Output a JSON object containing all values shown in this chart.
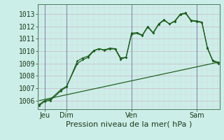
{
  "bg_color": "#cceee8",
  "grid_color_major": "#c8b8c8",
  "grid_color_minor": "#ddd0dd",
  "line_color": "#1a5c1a",
  "title": "Pression niveau de la mer( hPa )",
  "ylabel_values": [
    1006,
    1007,
    1008,
    1009,
    1010,
    1011,
    1012,
    1013
  ],
  "ylim": [
    1005.3,
    1013.8
  ],
  "xlim": [
    -0.5,
    66.5
  ],
  "xlabel_ticks": [
    2,
    10,
    34,
    58
  ],
  "xlabel_labels": [
    "Jeu",
    "Dim",
    "Ven",
    "Sam"
  ],
  "vline_x": [
    2,
    10,
    34,
    58
  ],
  "vline_color": "#8888aa",
  "series1_x": [
    0,
    2,
    4,
    8,
    10,
    14,
    16,
    18,
    20,
    22,
    24,
    26,
    28,
    30,
    32,
    34,
    36,
    38,
    40,
    42,
    44,
    46,
    48,
    50,
    52,
    54,
    56,
    58,
    60,
    62,
    64,
    66
  ],
  "series1_y": [
    1005.6,
    1005.95,
    1006.0,
    1006.8,
    1007.1,
    1009.2,
    1009.45,
    1009.6,
    1010.05,
    1010.2,
    1010.1,
    1010.25,
    1010.2,
    1009.45,
    1009.5,
    1011.45,
    1011.5,
    1011.3,
    1012.0,
    1011.5,
    1012.2,
    1012.55,
    1012.2,
    1012.45,
    1013.0,
    1013.1,
    1012.5,
    1012.45,
    1012.35,
    1010.3,
    1009.25,
    1009.1
  ],
  "series2_x": [
    0,
    2,
    4,
    8,
    10,
    14,
    16,
    18,
    20,
    22,
    24,
    26,
    28,
    30,
    32,
    34,
    36,
    38,
    40,
    42,
    44,
    46,
    48,
    50,
    52,
    54,
    56,
    58,
    60,
    62,
    64,
    66
  ],
  "series2_y": [
    1005.7,
    1006.0,
    1006.1,
    1006.9,
    1007.15,
    1009.0,
    1009.3,
    1009.5,
    1010.0,
    1010.2,
    1010.05,
    1010.2,
    1010.15,
    1009.35,
    1009.5,
    1011.35,
    1011.45,
    1011.25,
    1011.95,
    1011.45,
    1012.15,
    1012.5,
    1012.2,
    1012.4,
    1012.95,
    1013.05,
    1012.45,
    1012.4,
    1012.3,
    1010.25,
    1009.2,
    1009.0
  ],
  "series3_x": [
    0,
    66
  ],
  "series3_y": [
    1006.0,
    1009.1
  ],
  "fontsize": 7,
  "label_fontsize": 8
}
